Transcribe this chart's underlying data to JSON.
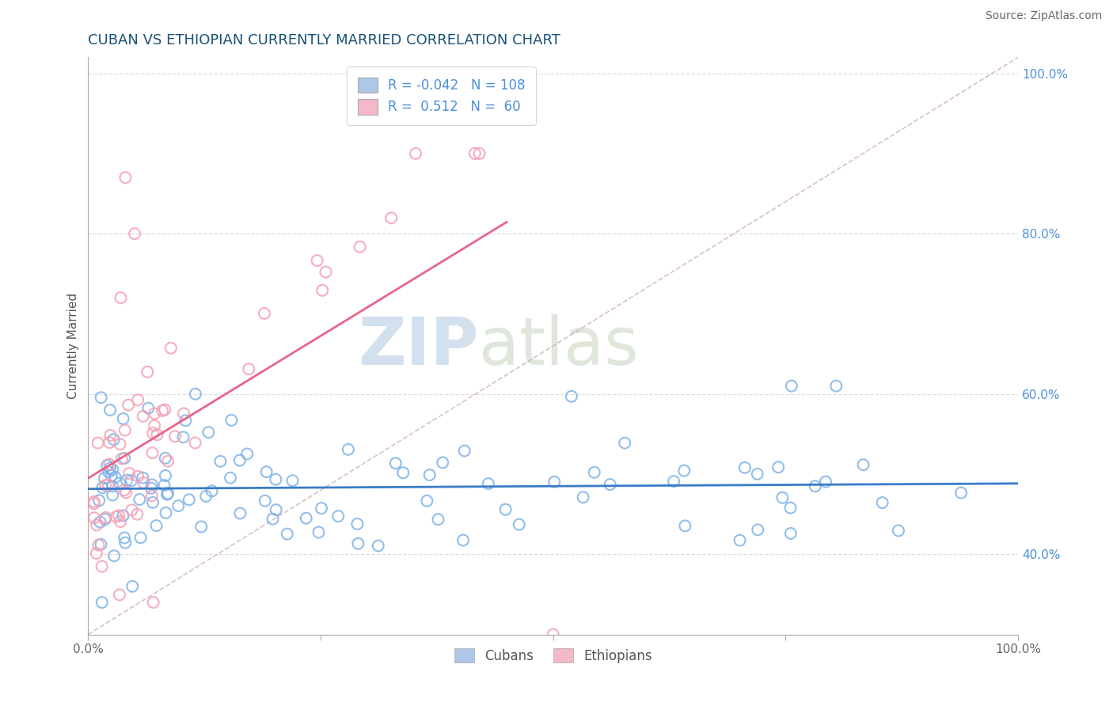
{
  "title": "CUBAN VS ETHIOPIAN CURRENTLY MARRIED CORRELATION CHART",
  "source": "Source: ZipAtlas.com",
  "ylabel": "Currently Married",
  "xlim": [
    0,
    1.0
  ],
  "ylim": [
    0.3,
    1.02
  ],
  "xticks": [
    0,
    0.25,
    0.5,
    0.75,
    1.0
  ],
  "xtick_labels": [
    "0.0%",
    "",
    "",
    "",
    "100.0%"
  ],
  "yticks_right": [
    0.4,
    0.6,
    0.8,
    1.0
  ],
  "ytick_labels_right": [
    "40.0%",
    "60.0%",
    "80.0%",
    "100.0%"
  ],
  "title_color": "#1a5276",
  "title_fontsize": 13,
  "legend_R_blue": "-0.042",
  "legend_N_blue": "108",
  "legend_R_pink": "0.512",
  "legend_N_pink": "60",
  "watermark_zip": "ZIP",
  "watermark_atlas": "atlas",
  "blue_color": "#7eb3e8",
  "pink_color": "#f4a0b5",
  "blue_line_color": "#3a7bc8",
  "pink_line_color": "#e8658a",
  "legend_box_blue": "#aec6e8",
  "legend_box_pink": "#f4b8c8",
  "ref_line_color": "#d0b0b8",
  "grid_color": "#dddddd",
  "dot_size": 100
}
